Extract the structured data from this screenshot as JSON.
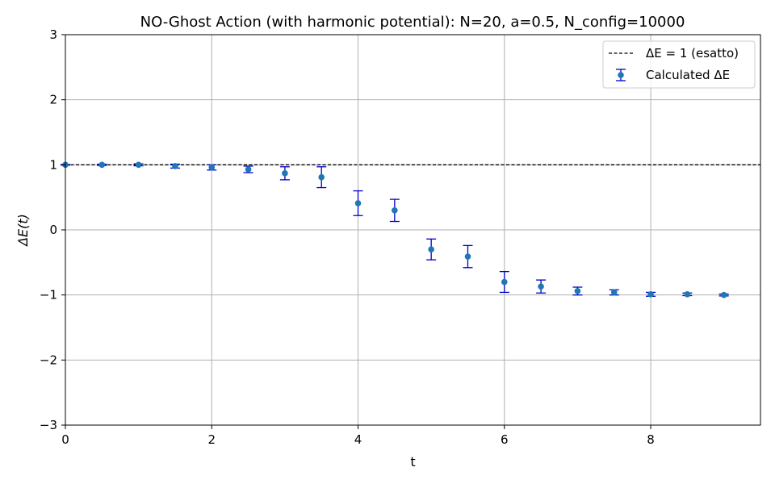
{
  "chart_data": {
    "type": "scatter",
    "title": "NO-Ghost Action (with harmonic potential): N=20, a=0.5, N_config=10000",
    "xlabel": "t",
    "ylabel": "ΔE(t)",
    "xlim": [
      0,
      9.5
    ],
    "ylim": [
      -3,
      3
    ],
    "xticks": [
      0,
      2,
      4,
      6,
      8
    ],
    "yticks": [
      -3,
      -2,
      -1,
      0,
      1,
      2,
      3
    ],
    "xtick_labels": [
      "0",
      "2",
      "4",
      "6",
      "8"
    ],
    "ytick_labels": [
      "−3",
      "−2",
      "−1",
      "0",
      "1",
      "2",
      "3"
    ],
    "grid": true,
    "legend_position": "top-right",
    "reference_line": {
      "label": "ΔE = 1 (esatto)",
      "y": 1,
      "style": "dashed",
      "color": "#000000"
    },
    "series": [
      {
        "name": "Calculated ΔE",
        "marker_color": "#1f77b4",
        "errorbar_color": "#0000cd",
        "x": [
          0,
          0.5,
          1,
          1.5,
          2,
          2.5,
          3,
          3.5,
          4,
          4.5,
          5,
          5.5,
          6,
          6.5,
          7,
          7.5,
          8,
          8.5,
          9
        ],
        "y": [
          1.0,
          1.0,
          1.0,
          0.98,
          0.96,
          0.93,
          0.87,
          0.81,
          0.41,
          0.3,
          -0.3,
          -0.41,
          -0.8,
          -0.87,
          -0.94,
          -0.96,
          -0.99,
          -0.99,
          -1.0
        ],
        "yerr": [
          0.005,
          0.01,
          0.015,
          0.03,
          0.04,
          0.05,
          0.1,
          0.16,
          0.19,
          0.17,
          0.16,
          0.17,
          0.16,
          0.1,
          0.06,
          0.04,
          0.03,
          0.02,
          0.015
        ]
      }
    ]
  }
}
